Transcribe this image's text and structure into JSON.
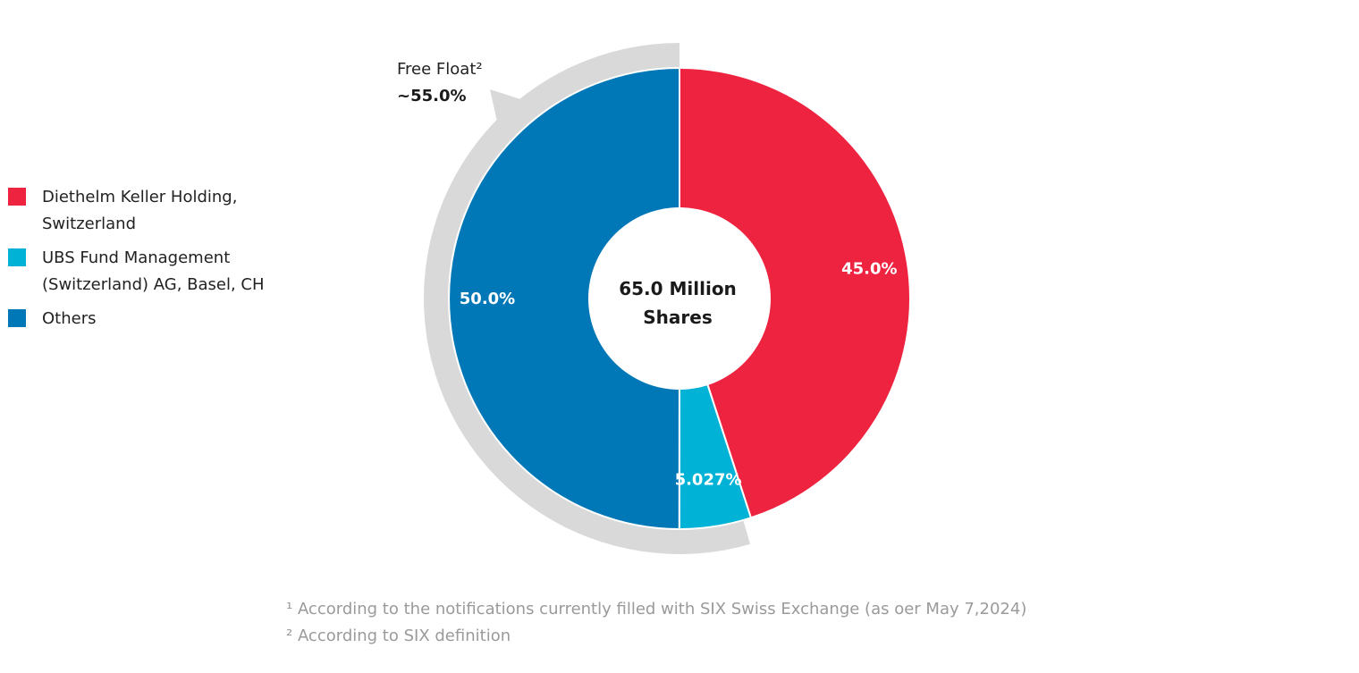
{
  "chart_data": {
    "type": "pie",
    "style": "donut",
    "center_text": {
      "line1": "65.0 Million",
      "line2": "Shares"
    },
    "slices": [
      {
        "name": "Diethelm Keller Holding,\nSwitzerland",
        "value": 45.0,
        "label": "45.0%",
        "color": "#EE2340"
      },
      {
        "name": "UBS Fund Management\n(Switzerland) AG, Basel, CH",
        "value": 5.027,
        "label": "5.027%",
        "color": "#00B2D6"
      },
      {
        "name": "Others",
        "value": 50.0,
        "label": "50.0%",
        "color": "#0077B6"
      }
    ],
    "annotation": {
      "title": "Free Float²",
      "value": "~55.0%",
      "arc_color": "#D9D9D9"
    }
  },
  "footnotes": [
    "¹ According to the notifications currently filled with SIX Swiss Exchange (as oer May 7,2024)",
    "² According to SIX definition"
  ]
}
